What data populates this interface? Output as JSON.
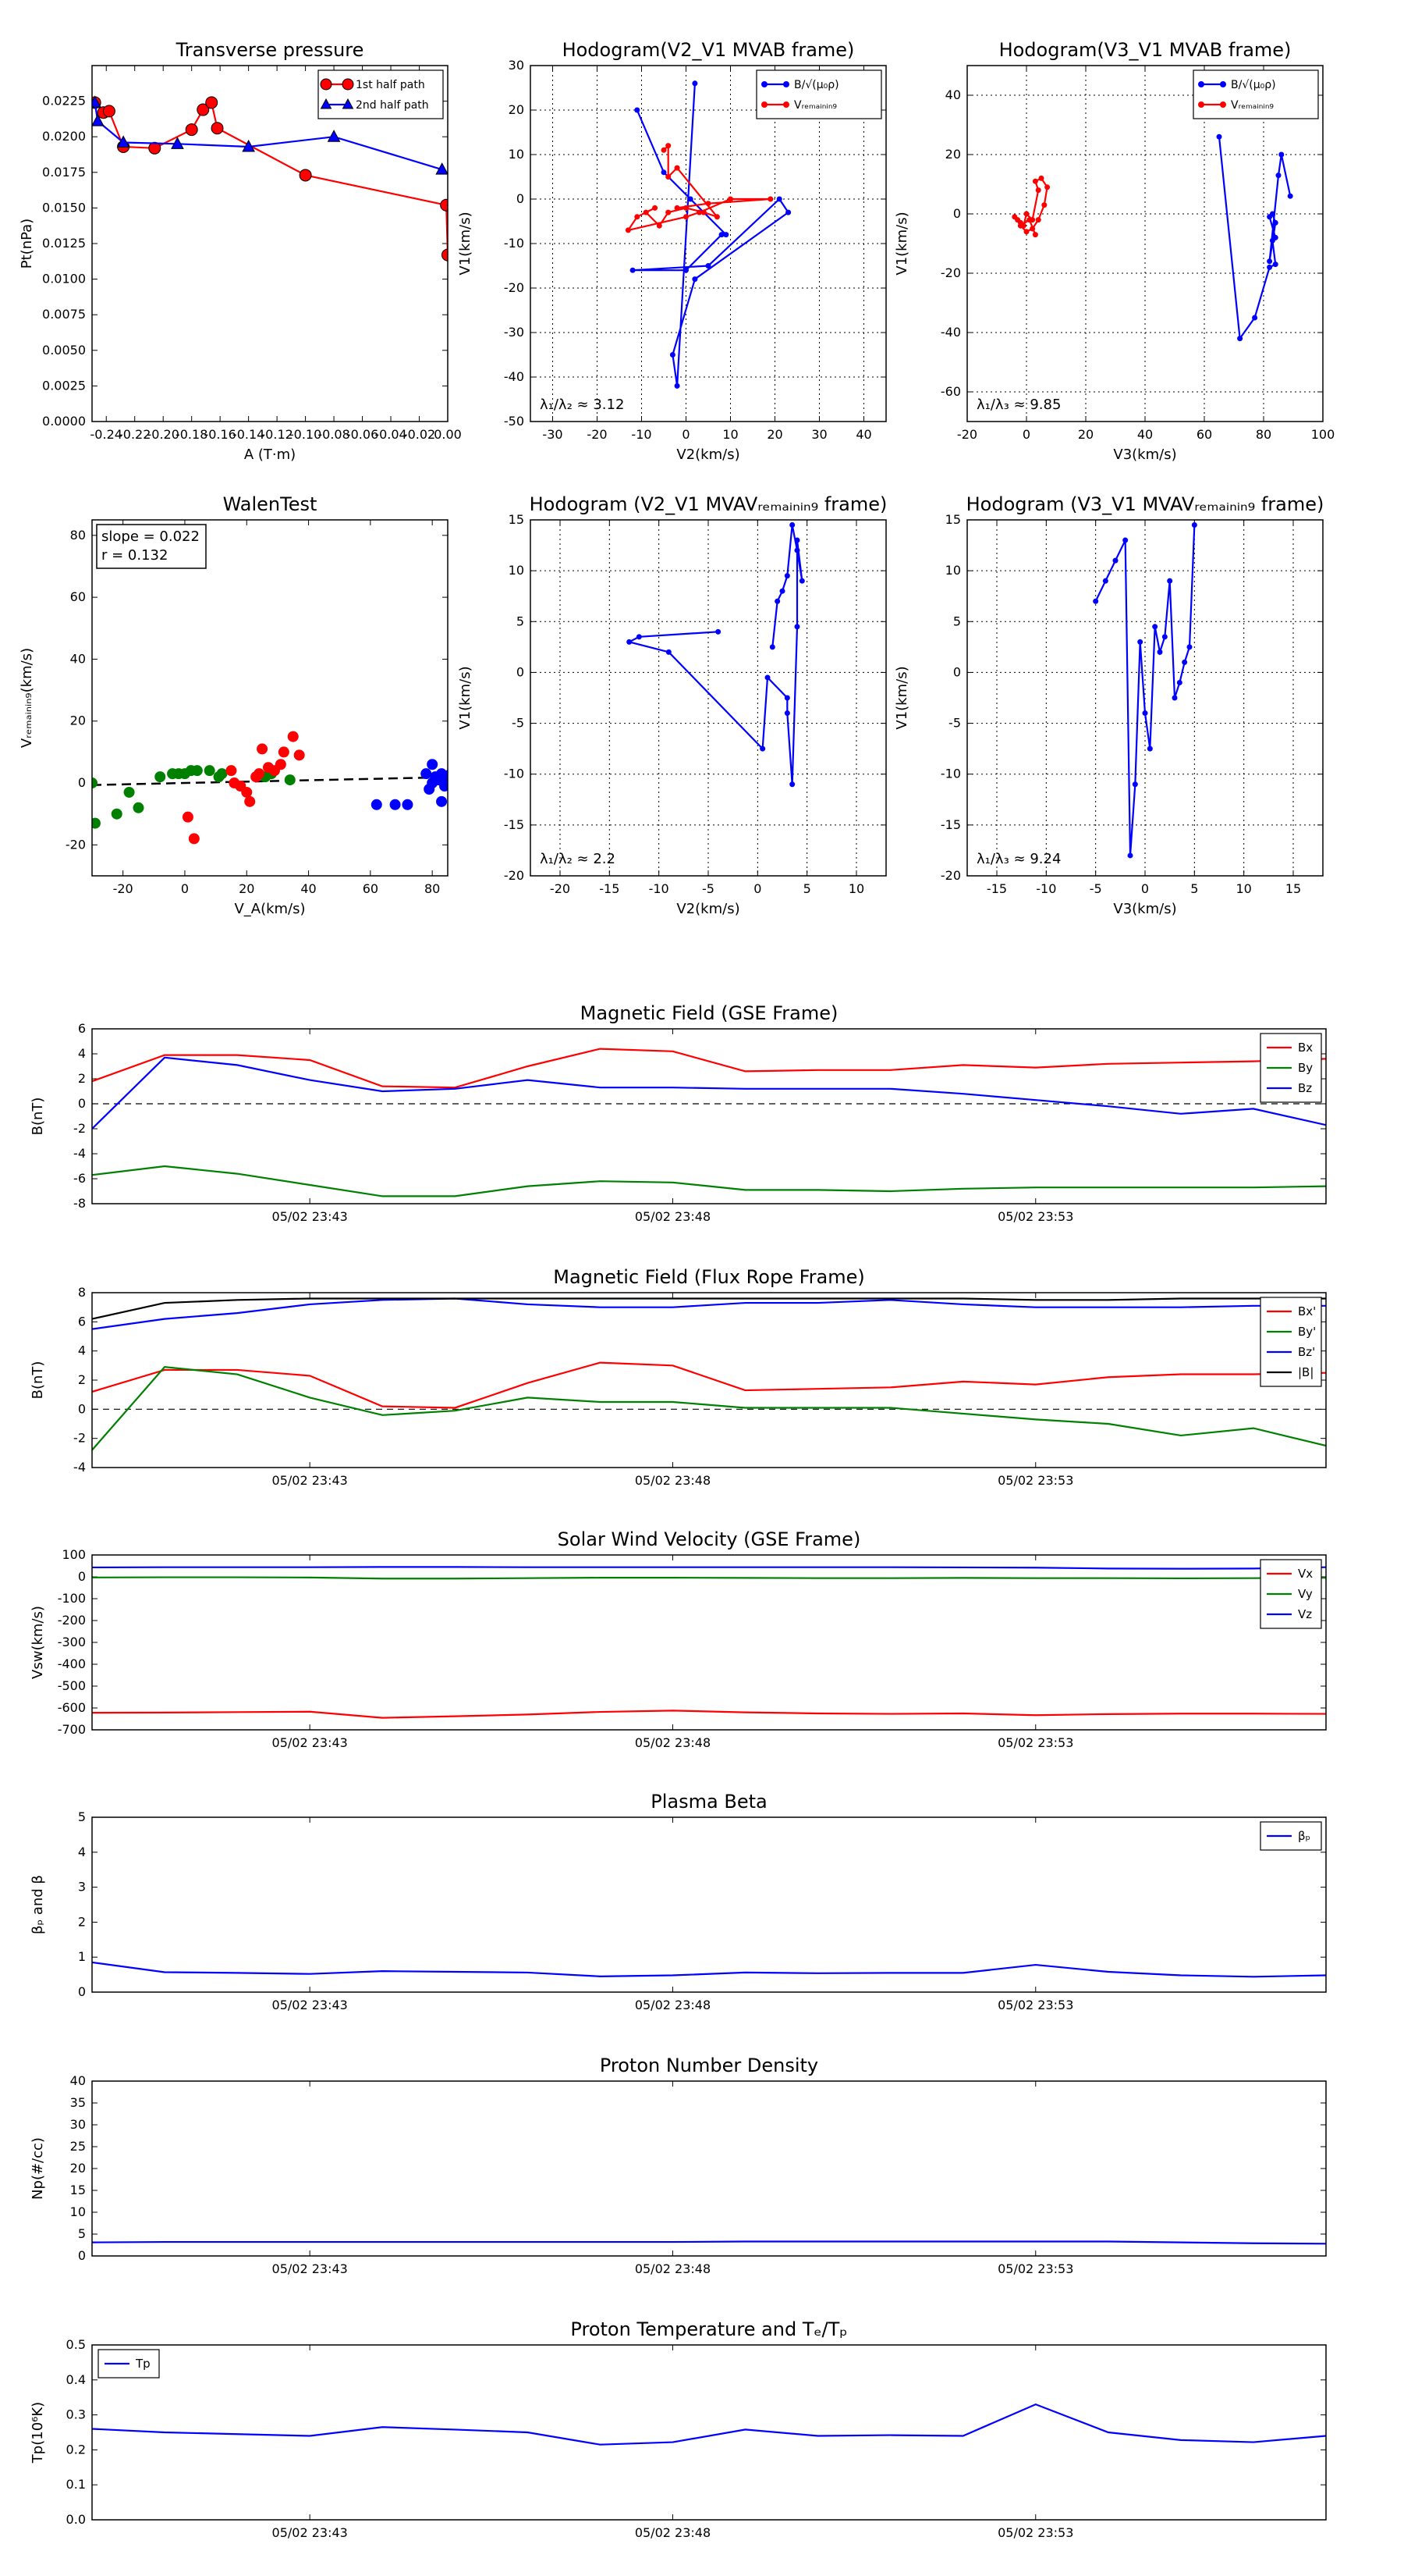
{
  "chart_data": [
    {
      "id": "tp",
      "type": "line",
      "title": "Transverse pressure",
      "xlabel": "A (T·m)",
      "ylabel": "Pt(nPa)",
      "xlim": [
        -0.25,
        0.0
      ],
      "ylim": [
        0.0,
        0.025
      ],
      "xticks": [
        "-0.24",
        "-0.22",
        "-0.20",
        "-0.18",
        "-0.16",
        "-0.14",
        "-0.12",
        "-0.10",
        "-0.08",
        "-0.06",
        "-0.04",
        "-0.02",
        "0.00"
      ],
      "yticks": [
        "0.0000",
        "0.0025",
        "0.0050",
        "0.0075",
        "0.0100",
        "0.0125",
        "0.0150",
        "0.0175",
        "0.0200",
        "0.0225"
      ],
      "grid": false,
      "legend": "top-right",
      "series": [
        {
          "name": "1st half path",
          "color": "#ff0000",
          "marker": "circle",
          "x": [
            -0.248,
            -0.242,
            -0.238,
            -0.228,
            -0.206,
            -0.18,
            -0.172,
            -0.166,
            -0.162,
            -0.1,
            -0.001,
            0.0
          ],
          "y": [
            0.0224,
            0.0217,
            0.0218,
            0.0193,
            0.0192,
            0.0205,
            0.0219,
            0.0224,
            0.0206,
            0.0173,
            0.0152,
            0.0117
          ]
        },
        {
          "name": "2nd half path",
          "color": "#0000ff",
          "marker": "triangle",
          "x": [
            -0.248,
            -0.246,
            -0.228,
            -0.19,
            -0.14,
            -0.08,
            -0.004
          ],
          "y": [
            0.0224,
            0.0211,
            0.0196,
            0.0195,
            0.0193,
            0.02,
            0.0177
          ]
        }
      ]
    },
    {
      "id": "hodo1",
      "type": "line",
      "title": "Hodogram(V2_V1 MVAB frame)",
      "xlabel": "V2(km/s)",
      "ylabel": "V1(km/s)",
      "xlim": [
        -35,
        45
      ],
      "ylim": [
        -50,
        30
      ],
      "xticks": [
        "-30",
        "-20",
        "-10",
        "0",
        "10",
        "20",
        "30",
        "40"
      ],
      "yticks": [
        "-50",
        "-40",
        "-30",
        "-20",
        "-10",
        "0",
        "10",
        "20",
        "30"
      ],
      "grid": true,
      "legend": "top-right",
      "annotation": "λ₁/λ₂ ≈ 3.12",
      "series": [
        {
          "name": "B/√(μ₀ρ)",
          "color": "#0000ff",
          "marker": "dot",
          "x": [
            -11,
            -5,
            1,
            9,
            8,
            0,
            -12,
            5,
            21,
            23,
            2,
            -3,
            -2,
            2
          ],
          "y": [
            20,
            6,
            0,
            -8,
            -8,
            -16,
            -16,
            -15,
            0,
            -3,
            -18,
            -35,
            -42,
            26
          ]
        },
        {
          "name": "Vᵣₑₘₐᵢₙᵢₙ₉",
          "color": "#ff0000",
          "marker": "dot",
          "x": [
            -5,
            -4,
            -4,
            -2,
            7,
            4,
            0,
            -4,
            -6,
            -9,
            -7,
            -11,
            -13,
            0,
            3,
            10,
            19,
            5,
            -2
          ],
          "y": [
            11,
            12,
            5,
            7,
            -4,
            -3,
            -2,
            -3,
            -6,
            -3,
            -2,
            -4,
            -7,
            -4,
            -3,
            0,
            0,
            -1,
            -2
          ]
        }
      ]
    },
    {
      "id": "hodo2",
      "type": "line",
      "title": "Hodogram(V3_V1 MVAB frame)",
      "xlabel": "V3(km/s)",
      "ylabel": "V1(km/s)",
      "xlim": [
        -20,
        100
      ],
      "ylim": [
        -70,
        50
      ],
      "xticks": [
        "-20",
        "0",
        "20",
        "40",
        "60",
        "80",
        "100"
      ],
      "yticks": [
        "-60",
        "-40",
        "-20",
        "0",
        "20",
        "40"
      ],
      "grid": true,
      "legend": "top-right",
      "annotation": "λ₁/λ₃ ≈ 9.85",
      "series": [
        {
          "name": "B/√(μ₀ρ)",
          "color": "#0000ff",
          "marker": "dot",
          "x": [
            65,
            72,
            77,
            82,
            84,
            83,
            84,
            82,
            83,
            84,
            82,
            85,
            86,
            89
          ],
          "y": [
            26,
            -42,
            -35,
            -18,
            -17,
            -9,
            -8,
            -1,
            0,
            -3,
            -16,
            13,
            20,
            6
          ]
        },
        {
          "name": "Vᵣₑₘₐᵢₙᵢₙ₉",
          "color": "#ff0000",
          "marker": "dot",
          "x": [
            -4,
            -2,
            -3,
            -1,
            0,
            2,
            4,
            3,
            5,
            7,
            6,
            4,
            2,
            0,
            -2,
            1,
            3
          ],
          "y": [
            -1,
            -3,
            -2,
            -4,
            0,
            -2,
            8,
            11,
            12,
            9,
            3,
            -2,
            -5,
            -6,
            -4,
            -2,
            -7
          ]
        }
      ]
    },
    {
      "id": "walen",
      "type": "scatter",
      "title": "WalenTest",
      "xlabel": "V_A(km/s)",
      "ylabel": "Vᵣₑₘₐᵢₙᵢₙ₉(km/s)",
      "xlim": [
        -30,
        85
      ],
      "ylim": [
        -30,
        85
      ],
      "xticks": [
        "-20",
        "0",
        "20",
        "40",
        "60",
        "80"
      ],
      "yticks": [
        "-20",
        "0",
        "20",
        "40",
        "60",
        "80"
      ],
      "grid": false,
      "annotation": [
        "slope = 0.022",
        "r = 0.132"
      ],
      "fit": {
        "slope": 0.022,
        "intercept": 0.0
      },
      "series": [
        {
          "color": "#008000",
          "x": [
            -30,
            -29,
            -22,
            -18,
            -15,
            -8,
            -4,
            -2,
            0,
            2,
            4,
            8,
            11,
            12,
            26,
            28,
            34
          ],
          "y": [
            0,
            -13,
            -10,
            -3,
            -8,
            2,
            3,
            3,
            3,
            4,
            4,
            4,
            2,
            3,
            2,
            3,
            1
          ]
        },
        {
          "color": "#ff0000",
          "x": [
            1,
            3,
            15,
            16,
            18,
            20,
            21,
            23,
            24,
            25,
            27,
            29,
            31,
            32,
            35,
            37
          ],
          "y": [
            -11,
            -18,
            4,
            0,
            -1,
            -3,
            -6,
            2,
            3,
            11,
            5,
            4,
            6,
            10,
            15,
            9
          ]
        },
        {
          "color": "#0000ff",
          "x": [
            62,
            68,
            72,
            78,
            79,
            80,
            80,
            81,
            82,
            83,
            83,
            84,
            85,
            85,
            86,
            86
          ],
          "y": [
            -7,
            -7,
            -7,
            3,
            -2,
            0,
            6,
            2,
            1,
            -6,
            3,
            -1,
            2,
            0,
            3,
            1
          ]
        }
      ]
    },
    {
      "id": "hodo3",
      "type": "line",
      "title": "Hodogram (V2_V1 MVAVᵣₑₘₐᵢₙᵢₙ₉ frame)",
      "xlabel": "V2(km/s)",
      "ylabel": "V1(km/s)",
      "xlim": [
        -23,
        13
      ],
      "ylim": [
        -20,
        15
      ],
      "xticks": [
        "-20",
        "-15",
        "-10",
        "-5",
        "0",
        "5",
        "10"
      ],
      "yticks": [
        "-20",
        "-15",
        "-10",
        "-5",
        "0",
        "5",
        "10",
        "15"
      ],
      "grid": true,
      "annotation": "λ₁/λ₂ ≈ 2.2",
      "series": [
        {
          "color": "#0000ff",
          "marker": "dot",
          "x": [
            -4,
            -12,
            -13,
            -9,
            0.5,
            1,
            3,
            3,
            3.5,
            4,
            4,
            4.5,
            4,
            3.5,
            3,
            2.5,
            2,
            1.5
          ],
          "y": [
            4,
            3.5,
            3,
            2,
            -7.5,
            -0.5,
            -2.5,
            -4,
            -11,
            4.5,
            13,
            9,
            12,
            14.5,
            9.5,
            8,
            7,
            2.5
          ]
        }
      ]
    },
    {
      "id": "hodo4",
      "type": "line",
      "title": "Hodogram (V3_V1 MVAVᵣₑₘₐᵢₙᵢₙ₉ frame)",
      "xlabel": "V3(km/s)",
      "ylabel": "V1(km/s)",
      "xlim": [
        -18,
        18
      ],
      "ylim": [
        -20,
        15
      ],
      "xticks": [
        "-15",
        "-10",
        "-5",
        "0",
        "5",
        "10",
        "15"
      ],
      "yticks": [
        "-20",
        "-15",
        "-10",
        "-5",
        "0",
        "5",
        "10",
        "15"
      ],
      "grid": true,
      "annotation": "λ₁/λ₃ ≈ 9.24",
      "series": [
        {
          "color": "#0000ff",
          "marker": "dot",
          "x": [
            -5,
            -4,
            -3,
            -2,
            -1.5,
            -1,
            -0.5,
            0,
            0.5,
            1,
            1.5,
            2,
            2.5,
            3,
            3.5,
            4,
            4.5,
            5
          ],
          "y": [
            7,
            9,
            11,
            13,
            -18,
            -11,
            3,
            -4,
            -7.5,
            4.5,
            2,
            3.5,
            9,
            -2.5,
            -1,
            1,
            2.5,
            14.5
          ]
        }
      ]
    },
    {
      "id": "mag_gse",
      "type": "line",
      "title": "Magnetic Field (GSE Frame)",
      "ylabel": "B(nT)",
      "xlim": [
        0,
        17
      ],
      "ylim": [
        -8,
        6
      ],
      "xticks_pos": [
        3,
        8,
        13
      ],
      "xticks": [
        "05/02 23:43",
        "05/02 23:48",
        "05/02 23:53"
      ],
      "yticks": [
        "-8",
        "-6",
        "-4",
        "-2",
        "0",
        "2",
        "4",
        "6"
      ],
      "zero_line": true,
      "legend": "top-right",
      "series": [
        {
          "name": "Bx",
          "color": "#ff0000",
          "y": [
            1.8,
            3.9,
            3.9,
            3.5,
            1.4,
            1.3,
            3.0,
            4.4,
            4.2,
            2.6,
            2.7,
            2.7,
            3.1,
            2.9,
            3.2,
            3.3,
            3.4,
            3.6
          ]
        },
        {
          "name": "By",
          "color": "#008000",
          "y": [
            -5.7,
            -5.0,
            -5.6,
            -6.5,
            -7.4,
            -7.4,
            -6.6,
            -6.2,
            -6.3,
            -6.9,
            -6.9,
            -7.0,
            -6.8,
            -6.7,
            -6.7,
            -6.7,
            -6.7,
            -6.6
          ]
        },
        {
          "name": "Bz",
          "color": "#0000ff",
          "y": [
            -2.0,
            3.7,
            3.1,
            1.9,
            1.0,
            1.2,
            1.9,
            1.3,
            1.3,
            1.2,
            1.2,
            1.2,
            0.8,
            0.3,
            -0.2,
            -0.8,
            -0.4,
            -1.7
          ]
        }
      ]
    },
    {
      "id": "mag_fr",
      "type": "line",
      "title": "Magnetic Field (Flux Rope Frame)",
      "ylabel": "B(nT)",
      "xlim": [
        0,
        17
      ],
      "ylim": [
        -4,
        8
      ],
      "xticks_pos": [
        3,
        8,
        13
      ],
      "xticks": [
        "05/02 23:43",
        "05/02 23:48",
        "05/02 23:53"
      ],
      "yticks": [
        "-4",
        "-2",
        "0",
        "2",
        "4",
        "6",
        "8"
      ],
      "zero_line": true,
      "legend": "top-right",
      "series": [
        {
          "name": "Bx'",
          "color": "#ff0000",
          "y": [
            1.2,
            2.7,
            2.7,
            2.3,
            0.2,
            0.1,
            1.8,
            3.2,
            3.0,
            1.3,
            1.4,
            1.5,
            1.9,
            1.7,
            2.2,
            2.4,
            2.4,
            2.5
          ]
        },
        {
          "name": "By'",
          "color": "#008000",
          "y": [
            -2.8,
            2.9,
            2.4,
            0.8,
            -0.4,
            -0.1,
            0.8,
            0.5,
            0.5,
            0.1,
            0.1,
            0.1,
            -0.3,
            -0.7,
            -1.0,
            -1.8,
            -1.3,
            -2.5
          ]
        },
        {
          "name": "Bz'",
          "color": "#0000ff",
          "y": [
            5.5,
            6.2,
            6.6,
            7.2,
            7.5,
            7.6,
            7.2,
            7.0,
            7.0,
            7.3,
            7.3,
            7.5,
            7.2,
            7.0,
            7.0,
            7.0,
            7.1,
            7.1
          ]
        },
        {
          "name": "|B|",
          "color": "#000000",
          "y": [
            6.2,
            7.3,
            7.5,
            7.6,
            7.6,
            7.6,
            7.6,
            7.6,
            7.6,
            7.6,
            7.6,
            7.6,
            7.6,
            7.5,
            7.5,
            7.6,
            7.6,
            7.6
          ]
        }
      ]
    },
    {
      "id": "vsw",
      "type": "line",
      "title": "Solar Wind Velocity (GSE Frame)",
      "ylabel": "Vsw(km/s)",
      "xlim": [
        0,
        17
      ],
      "ylim": [
        -700,
        100
      ],
      "xticks_pos": [
        3,
        8,
        13
      ],
      "xticks": [
        "05/02 23:43",
        "05/02 23:48",
        "05/02 23:53"
      ],
      "yticks": [
        "-700",
        "-600",
        "-500",
        "-400",
        "-300",
        "-200",
        "-100",
        "0",
        "100"
      ],
      "legend": "top-right",
      "series": [
        {
          "name": "Vx",
          "color": "#ff0000",
          "y": [
            -622,
            -621,
            -619,
            -617,
            -645,
            -638,
            -630,
            -618,
            -612,
            -620,
            -625,
            -627,
            -625,
            -633,
            -628,
            -626,
            -626,
            -627
          ]
        },
        {
          "name": "Vy",
          "color": "#008000",
          "y": [
            -3,
            -2,
            -2,
            -3,
            -8,
            -8,
            -6,
            -4,
            -4,
            -5,
            -6,
            -6,
            -5,
            -6,
            -6,
            -7,
            -6,
            -4
          ]
        },
        {
          "name": "Vz",
          "color": "#0000ff",
          "y": [
            43,
            44,
            44,
            44,
            45,
            45,
            44,
            44,
            44,
            44,
            44,
            44,
            43,
            42,
            38,
            37,
            38,
            44
          ]
        }
      ]
    },
    {
      "id": "beta",
      "type": "line",
      "title": "Plasma Beta",
      "ylabel": "βₚ and β",
      "xlim": [
        0,
        17
      ],
      "ylim": [
        0,
        5
      ],
      "xticks_pos": [
        3,
        8,
        13
      ],
      "xticks": [
        "05/02 23:43",
        "05/02 23:48",
        "05/02 23:53"
      ],
      "yticks": [
        "0",
        "1",
        "2",
        "3",
        "4",
        "5"
      ],
      "legend": "top-right",
      "series": [
        {
          "name": "βₚ",
          "color": "#0000ff",
          "y": [
            0.85,
            0.57,
            0.55,
            0.52,
            0.6,
            0.58,
            0.56,
            0.45,
            0.48,
            0.56,
            0.54,
            0.55,
            0.55,
            0.78,
            0.58,
            0.48,
            0.44,
            0.48
          ]
        }
      ]
    },
    {
      "id": "np",
      "type": "line",
      "title": "Proton Number Density",
      "ylabel": "Np(#/cc)",
      "xlim": [
        0,
        17
      ],
      "ylim": [
        0,
        40
      ],
      "xticks_pos": [
        3,
        8,
        13
      ],
      "xticks": [
        "05/02 23:43",
        "05/02 23:48",
        "05/02 23:53"
      ],
      "yticks": [
        "0",
        "5",
        "10",
        "15",
        "20",
        "25",
        "30",
        "35",
        "40"
      ],
      "series": [
        {
          "color": "#0000ff",
          "y": [
            3.1,
            3.2,
            3.2,
            3.2,
            3.2,
            3.2,
            3.2,
            3.2,
            3.2,
            3.3,
            3.3,
            3.3,
            3.3,
            3.3,
            3.3,
            3.1,
            2.9,
            2.8
          ]
        }
      ]
    },
    {
      "id": "tp_temp",
      "type": "line",
      "title": "Proton Temperature and Tₑ/Tₚ",
      "ylabel": "Tp(10⁶K)",
      "xlim": [
        0,
        17
      ],
      "ylim": [
        0,
        0.5
      ],
      "xticks_pos": [
        3,
        8,
        13
      ],
      "xticks": [
        "05/02 23:43",
        "05/02 23:48",
        "05/02 23:53"
      ],
      "yticks": [
        "0.0",
        "0.1",
        "0.2",
        "0.3",
        "0.4",
        "0.5"
      ],
      "legend": "top-left",
      "series": [
        {
          "name": "Tp",
          "color": "#0000ff",
          "y": [
            0.26,
            0.25,
            0.245,
            0.24,
            0.265,
            0.258,
            0.25,
            0.215,
            0.222,
            0.258,
            0.24,
            0.242,
            0.24,
            0.33,
            0.25,
            0.228,
            0.222,
            0.24
          ]
        }
      ]
    }
  ]
}
